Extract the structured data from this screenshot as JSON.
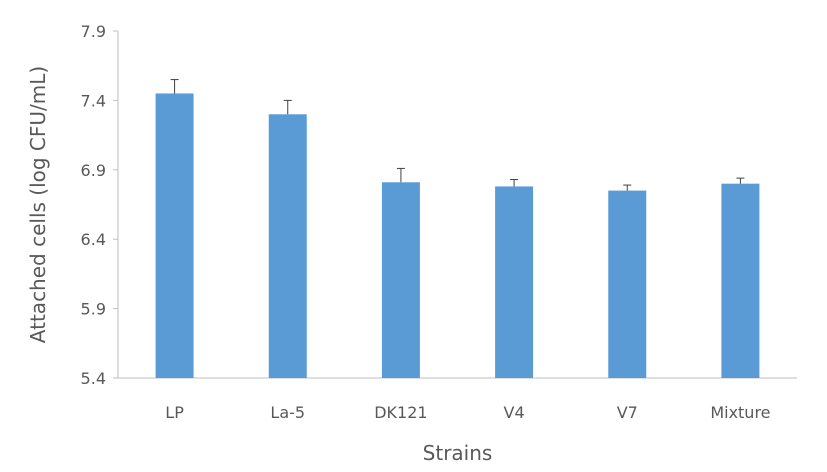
{
  "chart_data": {
    "type": "bar",
    "title": "",
    "xlabel": "Strains",
    "ylabel": "Attached cells (log CFU/mL)",
    "categories": [
      "LP",
      "La-5",
      "DK121",
      "V4",
      "V7",
      "Mixture"
    ],
    "series": [
      {
        "values": [
          7.45,
          7.3,
          6.81,
          6.78,
          6.75,
          6.8
        ],
        "errors": [
          0.1,
          0.1,
          0.1,
          0.05,
          0.04,
          0.04
        ]
      }
    ],
    "ylim": [
      5.4,
      7.9
    ],
    "yticks": [
      5.4,
      5.9,
      6.4,
      6.9,
      7.4,
      7.9
    ],
    "ytick_labels": [
      "5.4",
      "5.9",
      "6.4",
      "6.9",
      "7.4",
      "7.9"
    ],
    "grid": false,
    "legend": "none",
    "colors": {
      "bar": "#5B9BD5",
      "axis": "#BFBFBF",
      "text": "#595959",
      "error": "#404040"
    }
  }
}
